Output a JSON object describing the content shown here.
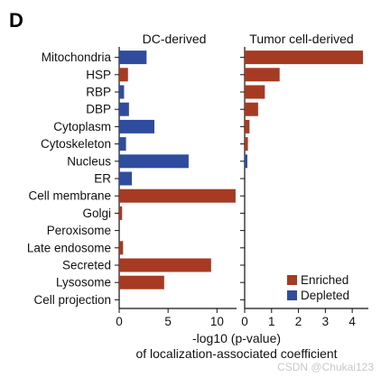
{
  "panel_letter": "D",
  "colors": {
    "enriched": "#a63a22",
    "depleted": "#2f4c9e"
  },
  "xlabel_line1": "-log10 (p-value)",
  "xlabel_line2": "of localization-associated coefficient",
  "watermark": "CSDN @Chukai123",
  "chart_data": {
    "type": "bar",
    "orientation": "horizontal",
    "categories": [
      "Mitochondria",
      "HSP",
      "RBP",
      "DBP",
      "Cytoplasm",
      "Cytoskeleton",
      "Nucleus",
      "ER",
      "Cell membrane",
      "Golgi",
      "Peroxisome",
      "Late endosome",
      "Secreted",
      "Lysosome",
      "Cell projection"
    ],
    "legend": {
      "placement": "bottom-right",
      "entries": [
        {
          "name": "Enriched",
          "color": "#a63a22"
        },
        {
          "name": "Depleted",
          "color": "#2f4c9e"
        }
      ]
    },
    "panels": [
      {
        "title": "DC-derived",
        "xlim": [
          0,
          12
        ],
        "xticks": [
          0,
          5,
          10
        ],
        "values": [
          2.8,
          0.9,
          0.5,
          1.0,
          3.6,
          0.7,
          7.1,
          1.3,
          11.9,
          0.3,
          0,
          0.4,
          9.4,
          4.6,
          0
        ],
        "direction": [
          "depleted",
          "enriched",
          "depleted",
          "depleted",
          "depleted",
          "depleted",
          "depleted",
          "depleted",
          "enriched",
          "enriched",
          "enriched",
          "enriched",
          "enriched",
          "enriched",
          "enriched"
        ]
      },
      {
        "title": "Tumor cell-derived",
        "xlim": [
          0,
          4.6
        ],
        "xticks": [
          0,
          1,
          2,
          3,
          4
        ],
        "values": [
          4.4,
          1.3,
          0.75,
          0.5,
          0.18,
          0.12,
          0.1,
          0,
          0,
          0,
          0,
          0,
          0,
          0,
          0
        ],
        "direction": [
          "enriched",
          "enriched",
          "enriched",
          "enriched",
          "enriched",
          "enriched",
          "depleted",
          "enriched",
          "enriched",
          "enriched",
          "enriched",
          "enriched",
          "enriched",
          "enriched",
          "enriched"
        ]
      }
    ]
  }
}
